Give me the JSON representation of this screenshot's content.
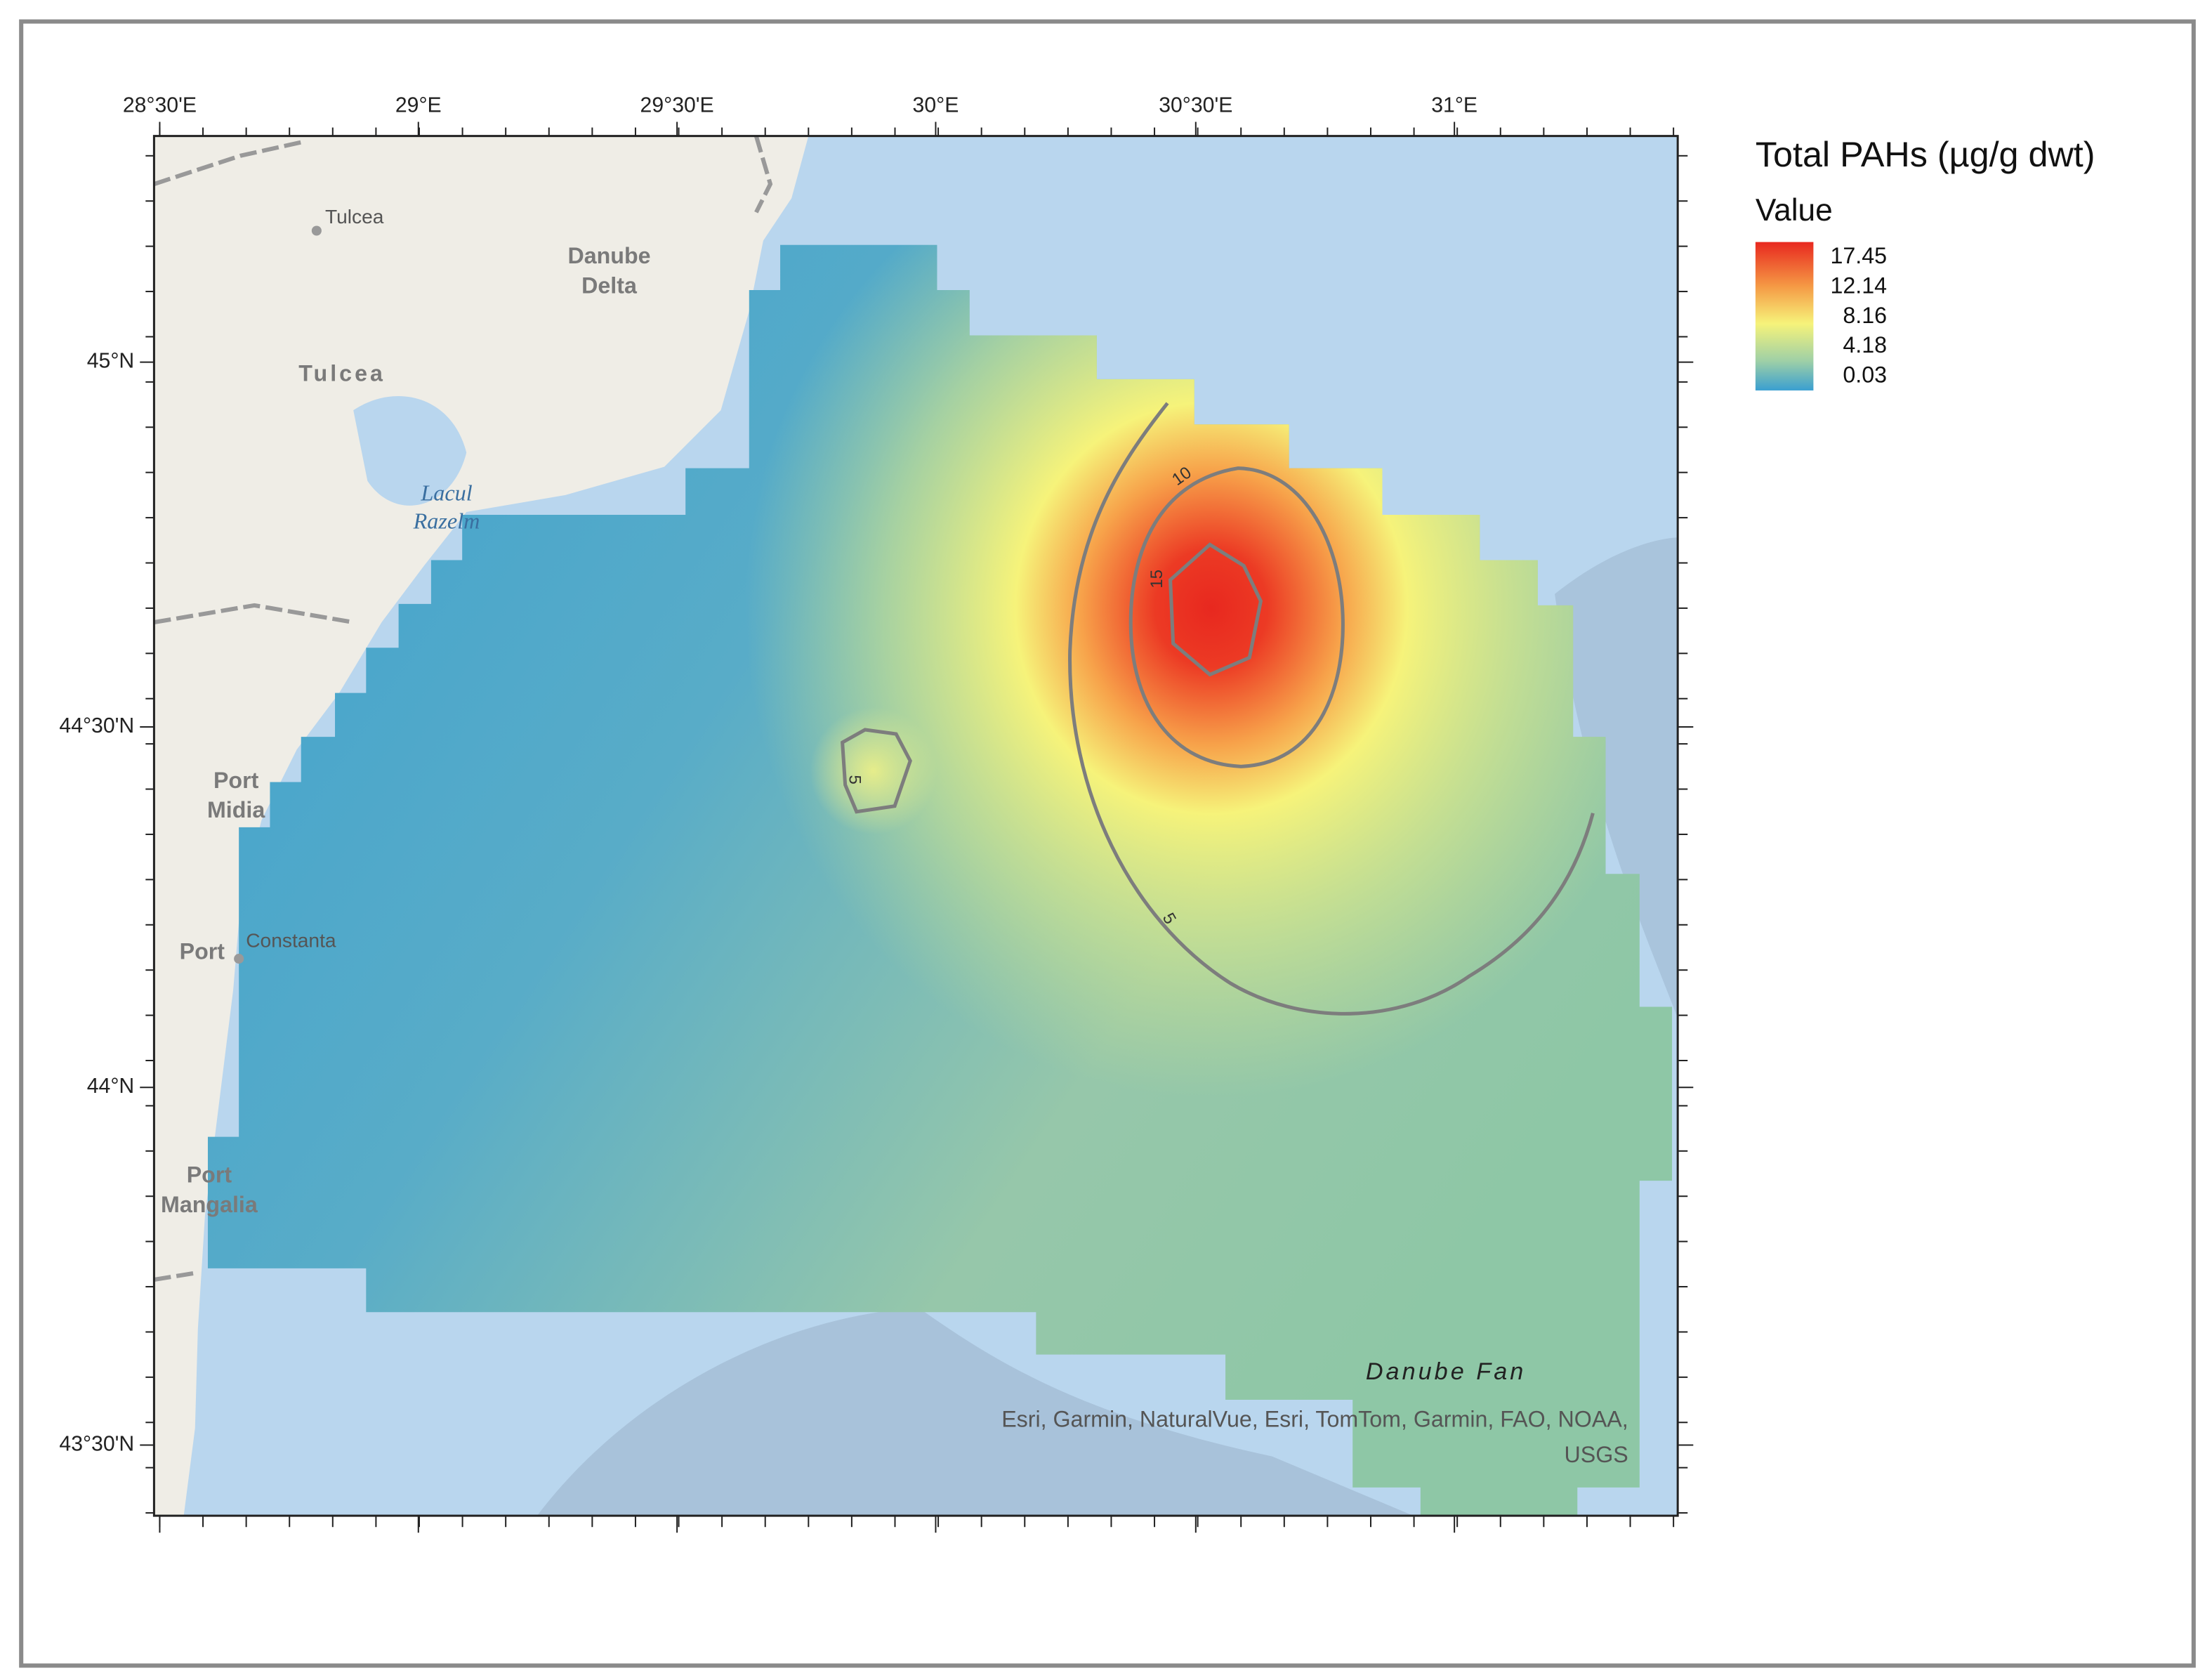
{
  "legend": {
    "title": "Total PAHs (µg/g dwt)",
    "subtitle": "Value",
    "labels": [
      17.45,
      12.14,
      8.16,
      4.18,
      0.03
    ]
  },
  "grid": {
    "longitudes": [
      "28°30'E",
      "29°E",
      "29°30'E",
      "30°E",
      "30°30'E",
      "31°E"
    ],
    "latitudes": [
      "45°N",
      "44°30'N",
      "44°N",
      "43°30'N"
    ]
  },
  "places": {
    "tulcea_city": "Tulcea",
    "danube_delta": [
      "Danube",
      "Delta"
    ],
    "tulcea_county": "Tulcea",
    "lacul_razelm": [
      "Lacul",
      "Razelm"
    ],
    "port_midia": [
      "Port",
      "Midia"
    ],
    "port": "Port",
    "constanta": "Constanta",
    "port_mangalia": [
      "Port",
      "Mangalia"
    ],
    "danube_fan": "Danube Fan"
  },
  "contours": [
    10,
    15,
    5,
    5
  ],
  "attribution": [
    "Esri, Garmin, NaturalVue, Esri, TomTom, Garmin, FAO, NOAA,",
    "USGS"
  ]
}
